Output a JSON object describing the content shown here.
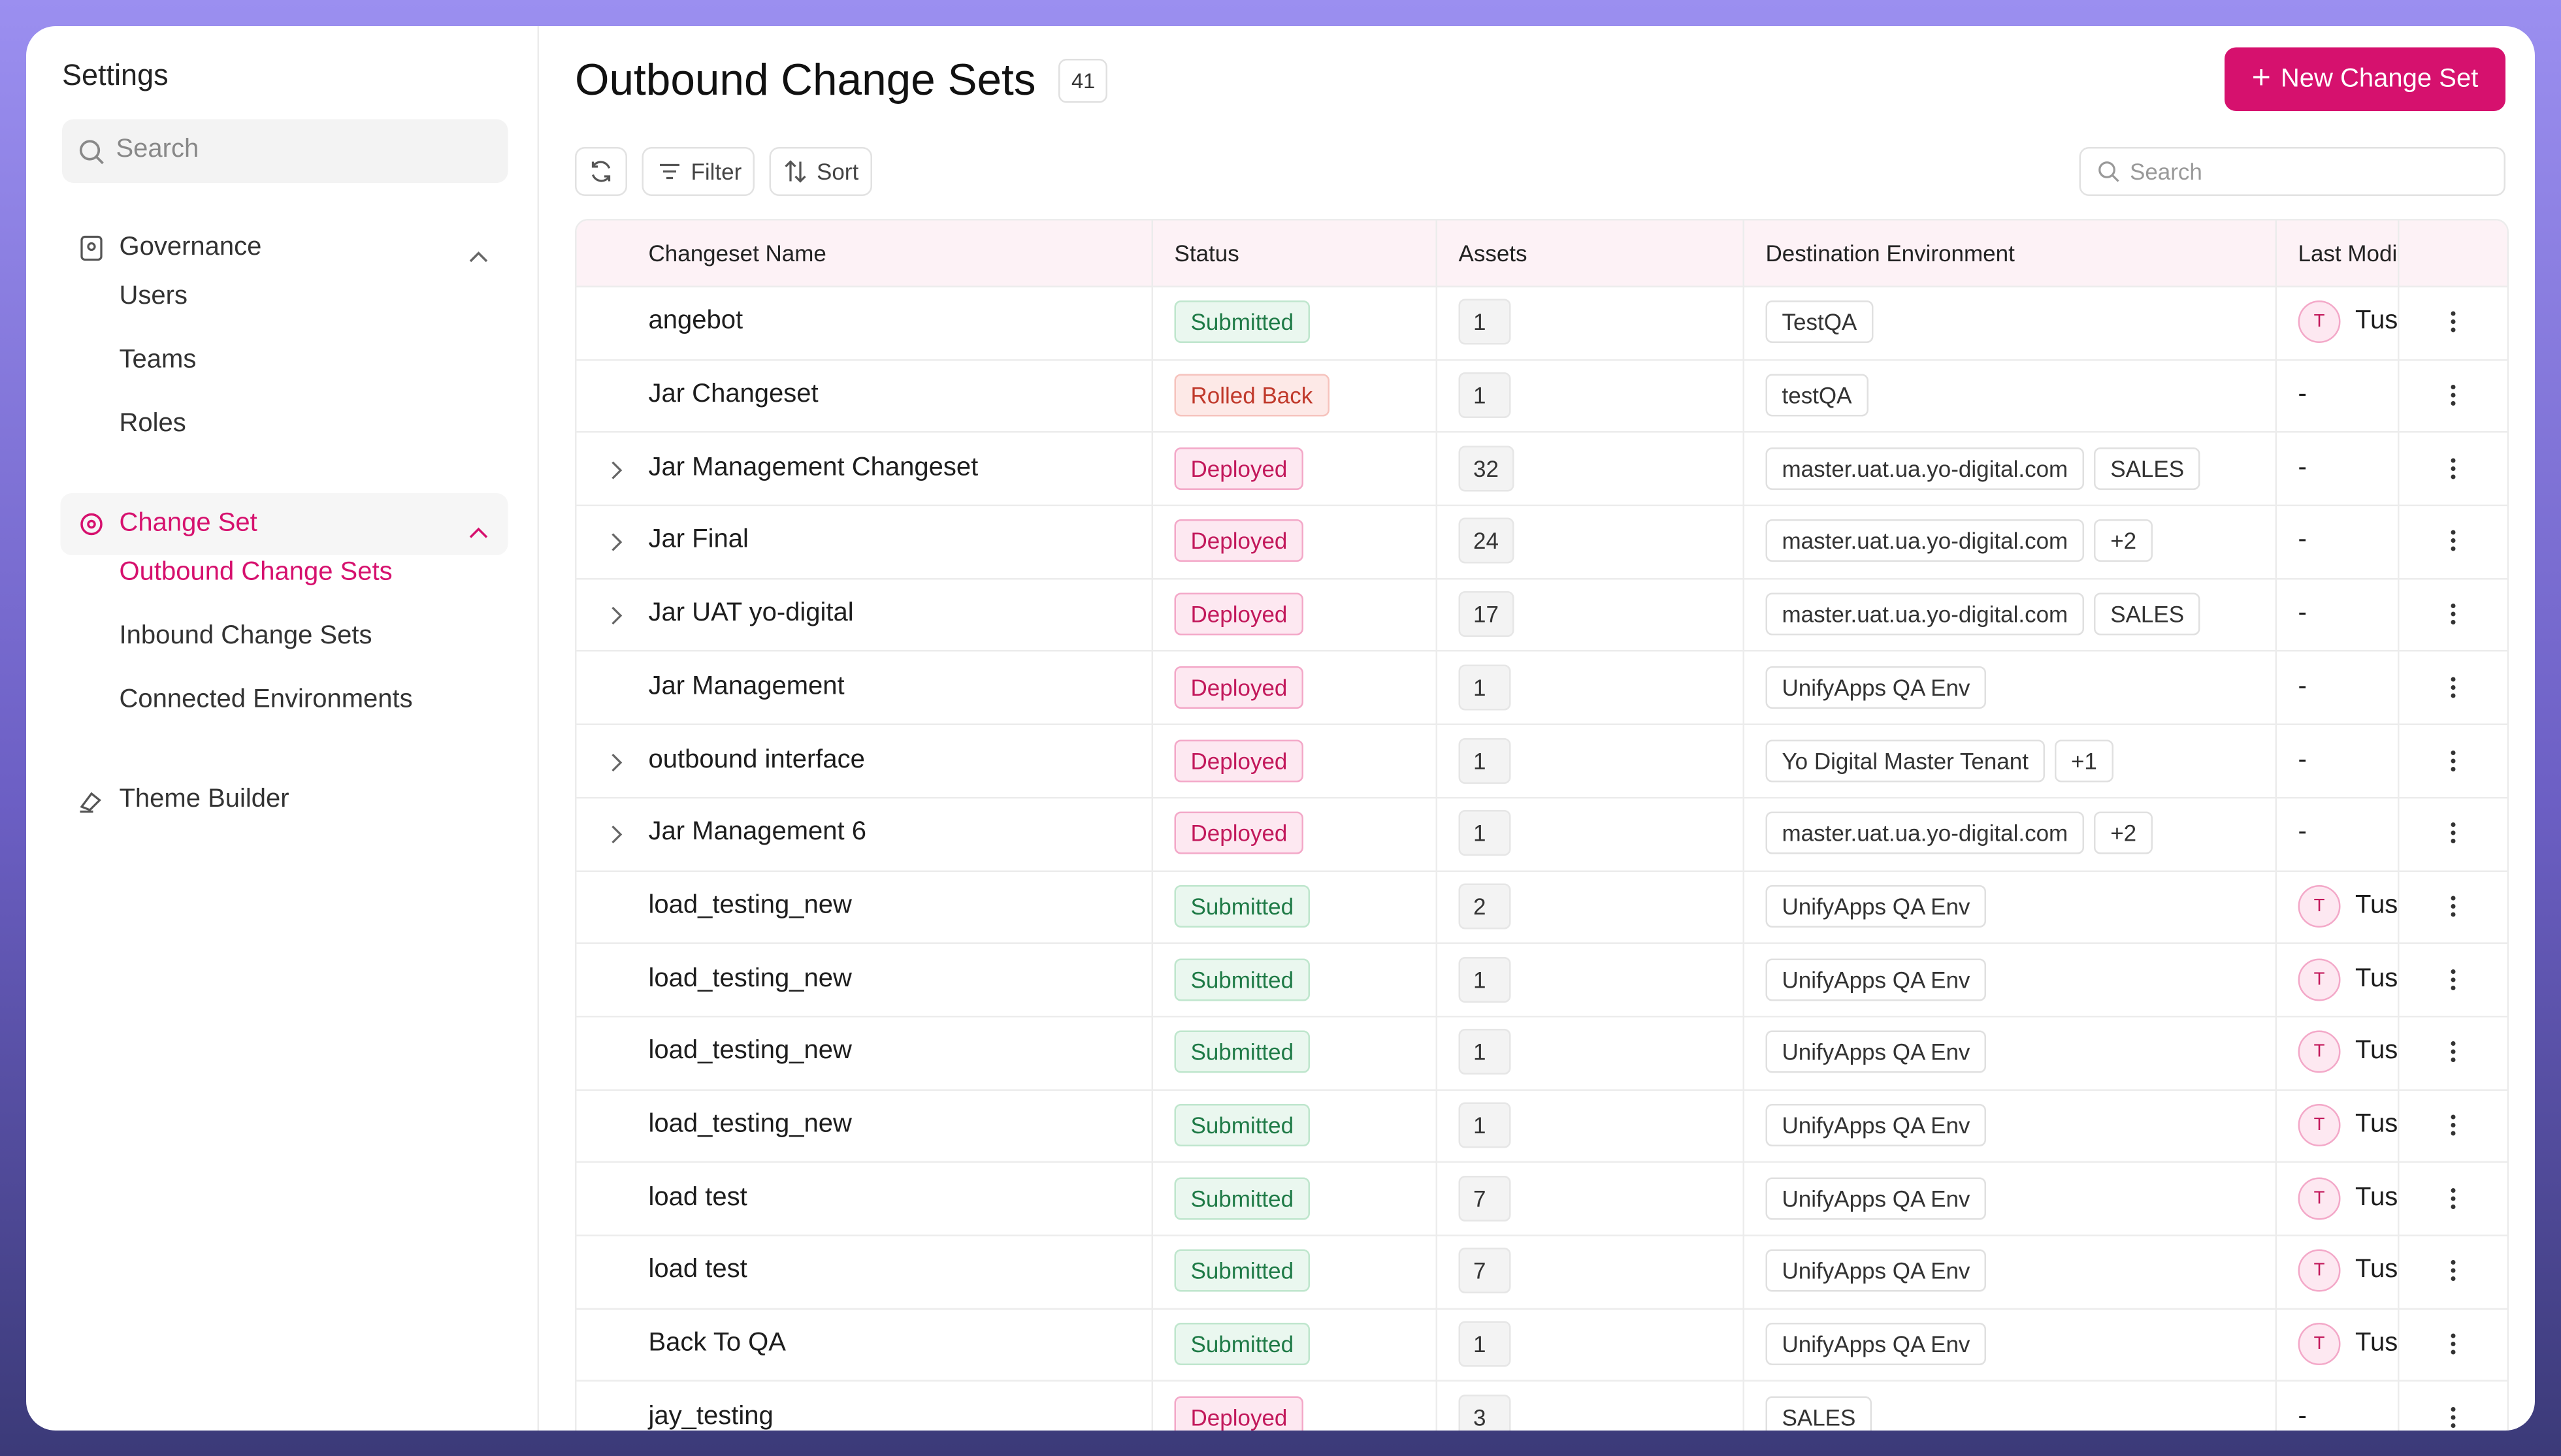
{
  "sidebar": {
    "title": "Settings",
    "search_placeholder": "Search",
    "nav": [
      {
        "label": "Governance",
        "active": false,
        "expanded": true,
        "children": [
          {
            "label": "Users",
            "active": false
          },
          {
            "label": "Teams",
            "active": false
          },
          {
            "label": "Roles",
            "active": false
          }
        ]
      },
      {
        "label": "Change Set",
        "active": true,
        "expanded": true,
        "children": [
          {
            "label": "Outbound Change Sets",
            "active": true
          },
          {
            "label": "Inbound Change Sets",
            "active": false
          },
          {
            "label": "Connected Environments",
            "active": false
          }
        ]
      },
      {
        "label": "Theme Builder",
        "active": false,
        "expanded": false,
        "children": []
      }
    ]
  },
  "header": {
    "title": "Outbound Change Sets",
    "count": 41,
    "button": "New Change Set"
  },
  "toolbar": {
    "filter": "Filter",
    "sort": "Sort",
    "search_placeholder": "Search"
  },
  "table": {
    "columns": [
      "Changeset Name",
      "Status",
      "Assets",
      "Destination Environment",
      "Last Modi"
    ],
    "rows": [
      {
        "name": "angebot",
        "status": "Submitted",
        "assets": 1,
        "destinations": [
          "TestQA"
        ],
        "modified": {
          "avatar": "T",
          "user": "Tus"
        },
        "expandable": false
      },
      {
        "name": "Jar Changeset",
        "status": "Rolled Back",
        "assets": 1,
        "destinations": [
          "testQA"
        ],
        "modified": "-",
        "expandable": false
      },
      {
        "name": "Jar Management Changeset",
        "status": "Deployed",
        "assets": 32,
        "destinations": [
          "master.uat.ua.yo-digital.com",
          "SALES"
        ],
        "modified": "-",
        "expandable": true
      },
      {
        "name": "Jar Final",
        "status": "Deployed",
        "assets": 24,
        "destinations": [
          "master.uat.ua.yo-digital.com",
          "+2"
        ],
        "modified": "-",
        "expandable": true
      },
      {
        "name": "Jar UAT yo-digital",
        "status": "Deployed",
        "assets": 17,
        "destinations": [
          "master.uat.ua.yo-digital.com",
          "SALES"
        ],
        "modified": "-",
        "expandable": true
      },
      {
        "name": "Jar Management",
        "status": "Deployed",
        "assets": 1,
        "destinations": [
          "UnifyApps QA Env"
        ],
        "modified": "-",
        "expandable": false
      },
      {
        "name": "outbound interface",
        "status": "Deployed",
        "assets": 1,
        "destinations": [
          "Yo Digital Master Tenant",
          "+1"
        ],
        "modified": "-",
        "expandable": true
      },
      {
        "name": "Jar Management 6",
        "status": "Deployed",
        "assets": 1,
        "destinations": [
          "master.uat.ua.yo-digital.com",
          "+2"
        ],
        "modified": "-",
        "expandable": true
      },
      {
        "name": "load_testing_new",
        "status": "Submitted",
        "assets": 2,
        "destinations": [
          "UnifyApps QA Env"
        ],
        "modified": {
          "avatar": "T",
          "user": "Tus"
        },
        "expandable": false
      },
      {
        "name": "load_testing_new",
        "status": "Submitted",
        "assets": 1,
        "destinations": [
          "UnifyApps QA Env"
        ],
        "modified": {
          "avatar": "T",
          "user": "Tus"
        },
        "expandable": false
      },
      {
        "name": "load_testing_new",
        "status": "Submitted",
        "assets": 1,
        "destinations": [
          "UnifyApps QA Env"
        ],
        "modified": {
          "avatar": "T",
          "user": "Tus"
        },
        "expandable": false
      },
      {
        "name": "load_testing_new",
        "status": "Submitted",
        "assets": 1,
        "destinations": [
          "UnifyApps QA Env"
        ],
        "modified": {
          "avatar": "T",
          "user": "Tus"
        },
        "expandable": false
      },
      {
        "name": "load test",
        "status": "Submitted",
        "assets": 7,
        "destinations": [
          "UnifyApps QA Env"
        ],
        "modified": {
          "avatar": "T",
          "user": "Tus"
        },
        "expandable": false
      },
      {
        "name": "load test",
        "status": "Submitted",
        "assets": 7,
        "destinations": [
          "UnifyApps QA Env"
        ],
        "modified": {
          "avatar": "T",
          "user": "Tus"
        },
        "expandable": false
      },
      {
        "name": "Back To QA",
        "status": "Submitted",
        "assets": 1,
        "destinations": [
          "UnifyApps QA Env"
        ],
        "modified": {
          "avatar": "T",
          "user": "Tus"
        },
        "expandable": false
      },
      {
        "name": "jay_testing",
        "status": "Deployed",
        "assets": 3,
        "destinations": [
          "SALES"
        ],
        "modified": "-",
        "expandable": false
      }
    ]
  }
}
